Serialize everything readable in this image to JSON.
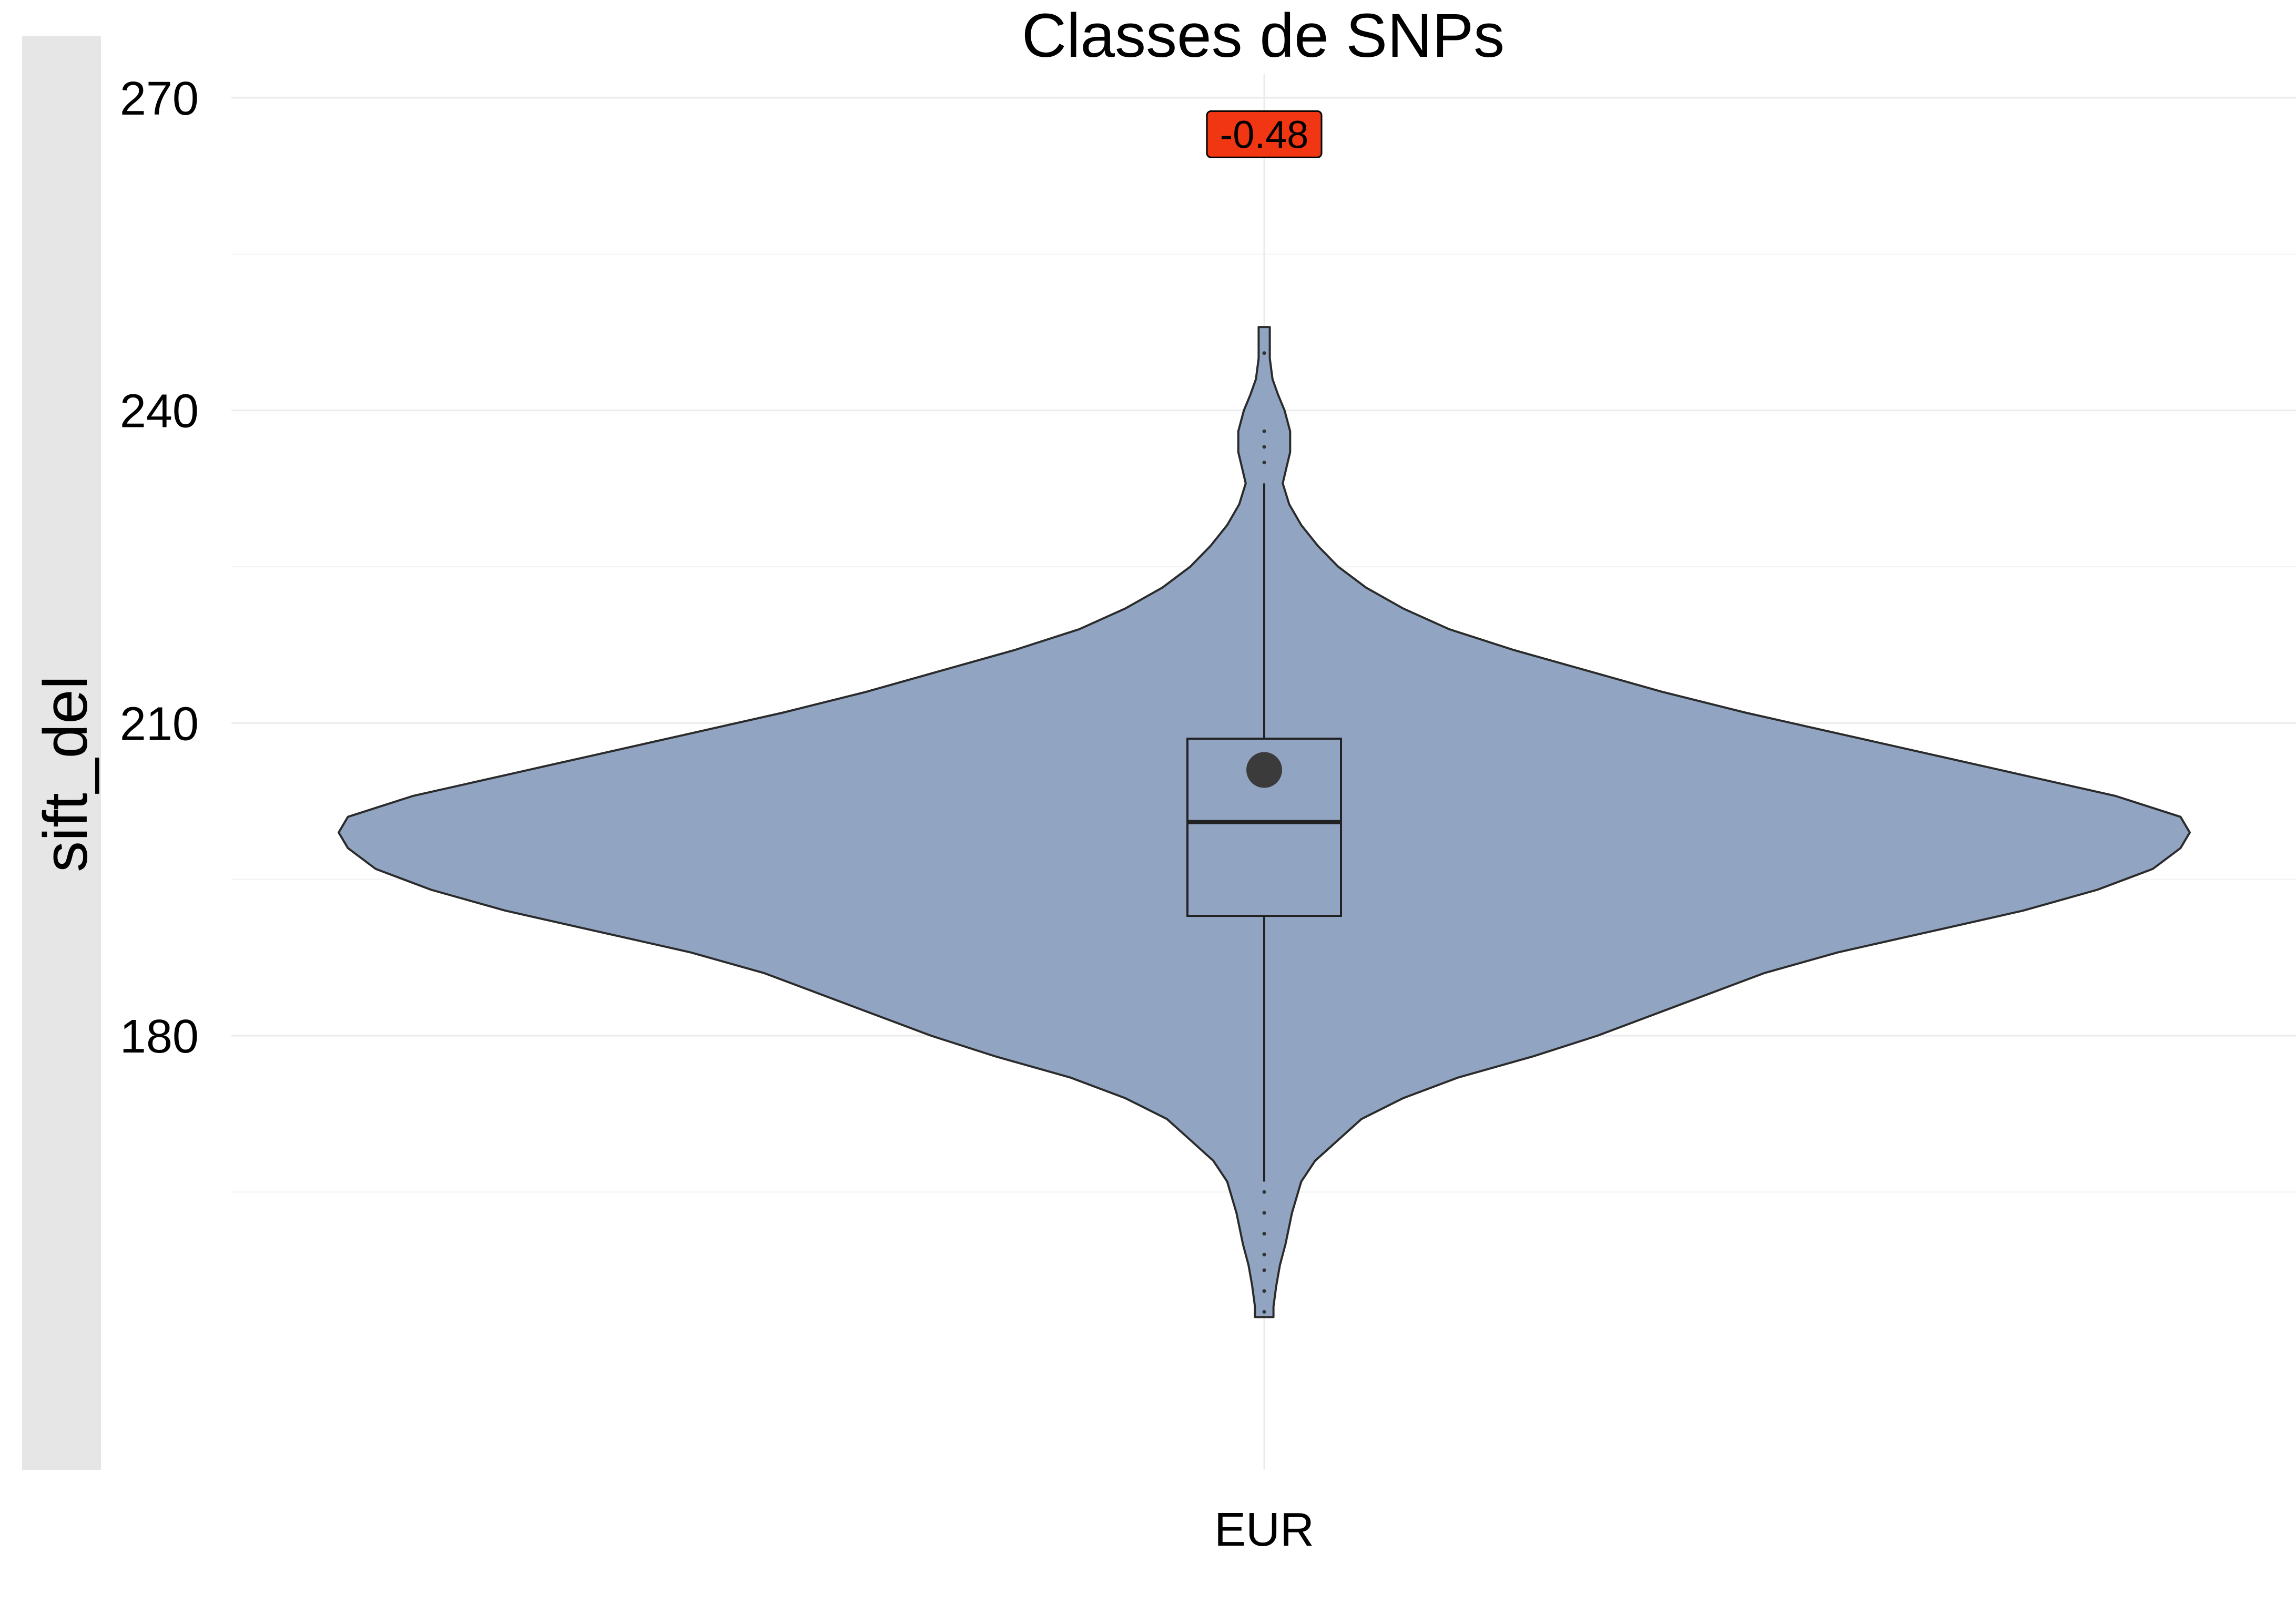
{
  "chart_data": {
    "type": "violin",
    "title": "Classes de SNPs",
    "xlabel": "",
    "ylabel": "sift_del",
    "categories": [
      "EUR"
    ],
    "ylim": [
      148,
      272
    ],
    "yticks": [
      180,
      210,
      240,
      270
    ],
    "grid": true,
    "series": [
      {
        "name": "EUR",
        "fill_color": "#91A5C3",
        "outline_color": "#2b2b2b",
        "box": {
          "q1": 191.5,
          "median": 200.5,
          "q3": 208.5,
          "whisker_low": 166,
          "whisker_high": 233
        },
        "mean": 205.5,
        "outliers": [
          153.5,
          155.5,
          157.5,
          159,
          161,
          163,
          165,
          235,
          236.5,
          238,
          245.5
        ],
        "density": [
          [
            153.0,
            0.01
          ],
          [
            154.0,
            0.01
          ],
          [
            156.0,
            0.013
          ],
          [
            158.0,
            0.017
          ],
          [
            160.0,
            0.023
          ],
          [
            163.0,
            0.03
          ],
          [
            166.0,
            0.04
          ],
          [
            168.0,
            0.055
          ],
          [
            170.0,
            0.08
          ],
          [
            172.0,
            0.105
          ],
          [
            174.0,
            0.15
          ],
          [
            176.0,
            0.21
          ],
          [
            178.0,
            0.29
          ],
          [
            180.0,
            0.36
          ],
          [
            182.0,
            0.42
          ],
          [
            184.0,
            0.48
          ],
          [
            186.0,
            0.54
          ],
          [
            188.0,
            0.62
          ],
          [
            190.0,
            0.72
          ],
          [
            192.0,
            0.82
          ],
          [
            194.0,
            0.9
          ],
          [
            196.0,
            0.96
          ],
          [
            198.0,
            0.99
          ],
          [
            199.5,
            1.0
          ],
          [
            201.0,
            0.99
          ],
          [
            203.0,
            0.92
          ],
          [
            205.0,
            0.82
          ],
          [
            207.0,
            0.72
          ],
          [
            209.0,
            0.62
          ],
          [
            211.0,
            0.52
          ],
          [
            213.0,
            0.43
          ],
          [
            215.0,
            0.35
          ],
          [
            217.0,
            0.27
          ],
          [
            219.0,
            0.2
          ],
          [
            221.0,
            0.15
          ],
          [
            223.0,
            0.11
          ],
          [
            225.0,
            0.08
          ],
          [
            227.0,
            0.058
          ],
          [
            229.0,
            0.04
          ],
          [
            231.0,
            0.027
          ],
          [
            233.0,
            0.02
          ],
          [
            234.5,
            0.024
          ],
          [
            236.0,
            0.028
          ],
          [
            238.0,
            0.028
          ],
          [
            240.0,
            0.022
          ],
          [
            241.5,
            0.015
          ],
          [
            243.0,
            0.009
          ],
          [
            245.0,
            0.006
          ],
          [
            247.0,
            0.006
          ],
          [
            248.0,
            0.006
          ]
        ]
      }
    ],
    "annotations": [
      {
        "label": "-0.48",
        "y": 266.5,
        "fill": "#F03613"
      }
    ]
  }
}
